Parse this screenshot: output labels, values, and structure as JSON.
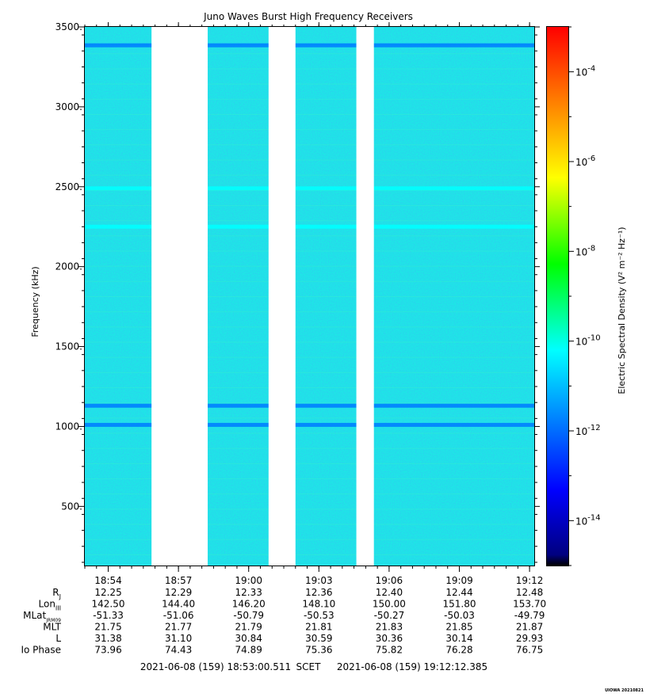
{
  "chart_data": {
    "type": "heatmap",
    "title": "Juno Waves Burst High Frequency Receivers",
    "ylabel": "Frequency (kHz)",
    "ylim": [
      130,
      3500
    ],
    "yticks": [
      "500.",
      "1000.",
      "1500.",
      "2000.",
      "2500.",
      "3000.",
      "3500."
    ],
    "ytick_values": [
      500,
      1000,
      1500,
      2000,
      2500,
      3000,
      3500
    ],
    "x_time_range": [
      "18:53:00",
      "19:12:12"
    ],
    "xticks": [
      "18:54",
      "18:57",
      "19:00",
      "19:03",
      "19:06",
      "19:09",
      "19:12"
    ],
    "xtick_minutes": [
      1,
      4,
      7,
      10,
      13,
      16,
      19
    ],
    "data_gaps_minutes": [
      [
        2.85,
        5.25
      ],
      [
        7.85,
        9.0
      ],
      [
        11.6,
        12.35
      ]
    ],
    "background_level_log10": -11.7,
    "emission_lines": [
      {
        "freq_khz": 3385,
        "level_log10": -10.6
      },
      {
        "freq_khz": 2490,
        "level_log10": -10.2
      },
      {
        "freq_khz": 2250,
        "level_log10": -10.5
      },
      {
        "freq_khz": 1130,
        "level_log10": -11.1
      },
      {
        "freq_khz": 1010,
        "level_log10": -10.9
      }
    ],
    "colorbar": {
      "label": "Electric Spectral Density (V² m⁻² Hz⁻¹)",
      "range_log10": [
        -15,
        -3
      ],
      "tick_labels": [
        {
          "exp": -4,
          "base": "10",
          "sup": "-4"
        },
        {
          "exp": -6,
          "base": "10",
          "sup": "-6"
        },
        {
          "exp": -8,
          "base": "10",
          "sup": "-8"
        },
        {
          "exp": -10,
          "base": "10",
          "sup": "-10"
        },
        {
          "exp": -12,
          "base": "10",
          "sup": "-12"
        },
        {
          "exp": -14,
          "base": "10",
          "sup": "-14"
        }
      ],
      "colors": [
        "#000080",
        "#0000ff",
        "#0080ff",
        "#00ffff",
        "#00ff00",
        "#ffff00",
        "#ff8000",
        "#ff0000"
      ]
    }
  },
  "ephemeris": {
    "rows": [
      {
        "label": "R",
        "sub": "J",
        "values": [
          "12.25",
          "12.29",
          "12.33",
          "12.36",
          "12.40",
          "12.44",
          "12.48"
        ]
      },
      {
        "label": "Lon",
        "sub": "III",
        "values": [
          "142.50",
          "144.40",
          "146.20",
          "148.10",
          "150.00",
          "151.80",
          "153.70"
        ]
      },
      {
        "label": "MLat",
        "sub": "JRM09",
        "values": [
          "-51.33",
          "-51.06",
          "-50.79",
          "-50.53",
          "-50.27",
          "-50.03",
          "-49.79"
        ]
      },
      {
        "label": "MLT",
        "sub": "",
        "values": [
          "21.75",
          "21.77",
          "21.79",
          "21.81",
          "21.83",
          "21.85",
          "21.87"
        ]
      },
      {
        "label": "L",
        "sub": "",
        "values": [
          "31.38",
          "31.10",
          "30.84",
          "30.59",
          "30.36",
          "30.14",
          "29.93"
        ]
      },
      {
        "label": "Io Phase",
        "sub": "",
        "values": [
          "73.96",
          "74.43",
          "74.89",
          "75.36",
          "75.82",
          "76.28",
          "76.75"
        ]
      }
    ]
  },
  "footer": {
    "start": "2021-06-08 (159) 18:53:00.511",
    "scet": "SCET",
    "end": "2021-06-08 (159) 19:12:12.385",
    "stamp": "UIOWA 20210821"
  }
}
